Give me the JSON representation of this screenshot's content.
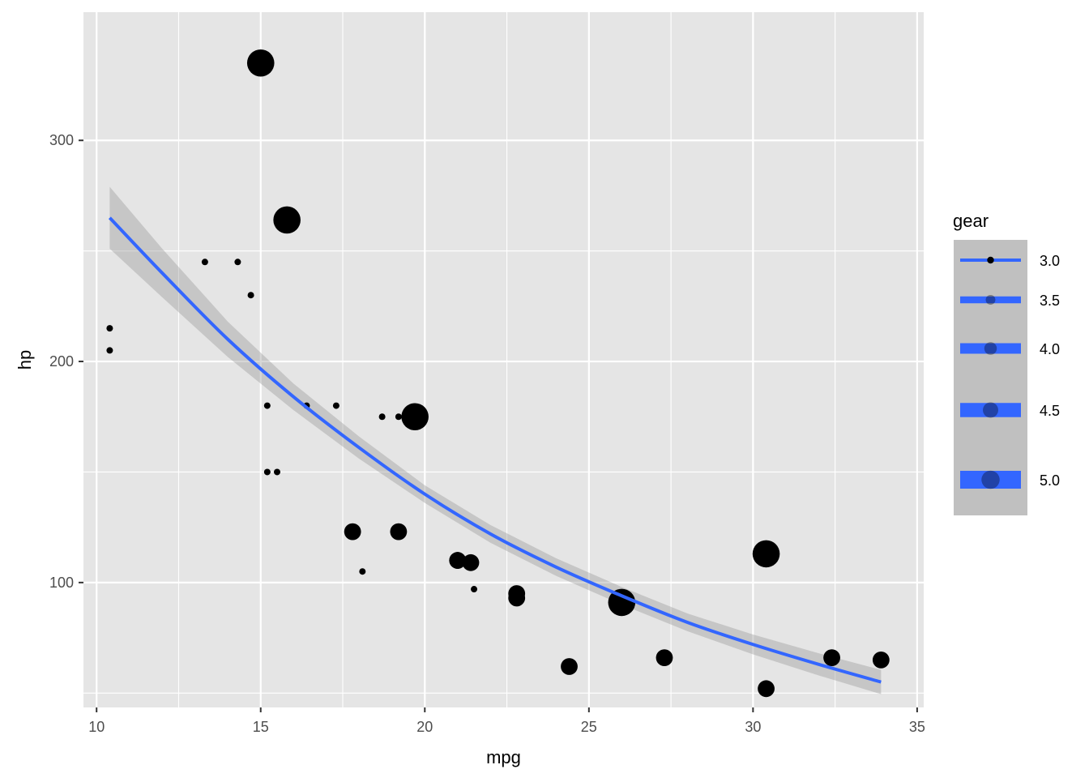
{
  "chart_data": {
    "type": "scatter",
    "xlabel": "mpg",
    "ylabel": "hp",
    "xlim": [
      9.6,
      35.2
    ],
    "ylim": [
      43.5,
      358
    ],
    "x_ticks": [
      10,
      15,
      20,
      25,
      30,
      35
    ],
    "x_tick_labels": [
      "10",
      "15",
      "20",
      "25",
      "30",
      "35"
    ],
    "y_ticks": [
      100,
      200,
      300
    ],
    "y_tick_labels": [
      "100",
      "200",
      "300"
    ],
    "grid": true,
    "legend_placement": "right",
    "size_by": "gear",
    "points": [
      {
        "x": 21.0,
        "y": 110,
        "gear": 4
      },
      {
        "x": 21.0,
        "y": 110,
        "gear": 4
      },
      {
        "x": 22.8,
        "y": 93,
        "gear": 4
      },
      {
        "x": 21.4,
        "y": 110,
        "gear": 3
      },
      {
        "x": 18.7,
        "y": 175,
        "gear": 3
      },
      {
        "x": 18.1,
        "y": 105,
        "gear": 3
      },
      {
        "x": 14.3,
        "y": 245,
        "gear": 3
      },
      {
        "x": 24.4,
        "y": 62,
        "gear": 4
      },
      {
        "x": 22.8,
        "y": 95,
        "gear": 4
      },
      {
        "x": 19.2,
        "y": 123,
        "gear": 4
      },
      {
        "x": 17.8,
        "y": 123,
        "gear": 4
      },
      {
        "x": 16.4,
        "y": 180,
        "gear": 3
      },
      {
        "x": 17.3,
        "y": 180,
        "gear": 3
      },
      {
        "x": 15.2,
        "y": 180,
        "gear": 3
      },
      {
        "x": 10.4,
        "y": 205,
        "gear": 3
      },
      {
        "x": 10.4,
        "y": 215,
        "gear": 3
      },
      {
        "x": 14.7,
        "y": 230,
        "gear": 3
      },
      {
        "x": 32.4,
        "y": 66,
        "gear": 4
      },
      {
        "x": 30.4,
        "y": 52,
        "gear": 4
      },
      {
        "x": 33.9,
        "y": 65,
        "gear": 4
      },
      {
        "x": 21.5,
        "y": 97,
        "gear": 3
      },
      {
        "x": 15.5,
        "y": 150,
        "gear": 3
      },
      {
        "x": 15.2,
        "y": 150,
        "gear": 3
      },
      {
        "x": 13.3,
        "y": 245,
        "gear": 3
      },
      {
        "x": 19.2,
        "y": 175,
        "gear": 3
      },
      {
        "x": 27.3,
        "y": 66,
        "gear": 4
      },
      {
        "x": 26.0,
        "y": 91,
        "gear": 5
      },
      {
        "x": 30.4,
        "y": 113,
        "gear": 5
      },
      {
        "x": 15.8,
        "y": 264,
        "gear": 5
      },
      {
        "x": 19.7,
        "y": 175,
        "gear": 5
      },
      {
        "x": 15.0,
        "y": 335,
        "gear": 5
      },
      {
        "x": 21.4,
        "y": 109,
        "gear": 4
      }
    ],
    "smooth": {
      "color": "#3366ff",
      "fit": [
        {
          "x": 10.4,
          "y": 265
        },
        {
          "x": 12.0,
          "y": 240
        },
        {
          "x": 14.0,
          "y": 210
        },
        {
          "x": 16.0,
          "y": 184
        },
        {
          "x": 18.0,
          "y": 161
        },
        {
          "x": 20.0,
          "y": 140
        },
        {
          "x": 22.0,
          "y": 122
        },
        {
          "x": 24.0,
          "y": 107
        },
        {
          "x": 26.0,
          "y": 94
        },
        {
          "x": 28.0,
          "y": 82
        },
        {
          "x": 30.0,
          "y": 72
        },
        {
          "x": 32.0,
          "y": 63
        },
        {
          "x": 33.9,
          "y": 55
        }
      ],
      "ribbon_halfwidth": [
        {
          "x": 10.4,
          "y": 14
        },
        {
          "x": 12.0,
          "y": 11
        },
        {
          "x": 14.0,
          "y": 8
        },
        {
          "x": 16.0,
          "y": 6
        },
        {
          "x": 18.0,
          "y": 5
        },
        {
          "x": 20.0,
          "y": 4
        },
        {
          "x": 22.0,
          "y": 4
        },
        {
          "x": 24.0,
          "y": 4
        },
        {
          "x": 26.0,
          "y": 4
        },
        {
          "x": 28.0,
          "y": 4
        },
        {
          "x": 30.0,
          "y": 4.5
        },
        {
          "x": 32.0,
          "y": 5
        },
        {
          "x": 33.9,
          "y": 5.5
        }
      ]
    },
    "legend": {
      "title": "gear",
      "items": [
        {
          "label": "3.0",
          "value": 3.0
        },
        {
          "label": "3.5",
          "value": 3.5
        },
        {
          "label": "4.0",
          "value": 4.0
        },
        {
          "label": "4.5",
          "value": 4.5
        },
        {
          "label": "5.0",
          "value": 5.0
        }
      ]
    },
    "colors": {
      "panel": "#e5e5e5",
      "grid_major": "#ffffff",
      "point": "#000000",
      "line": "#3366ff",
      "ribbon": "#999999",
      "legend_key": "#c0c0c0",
      "axis_text": "#4d4d4d",
      "title_text": "#000000"
    }
  }
}
